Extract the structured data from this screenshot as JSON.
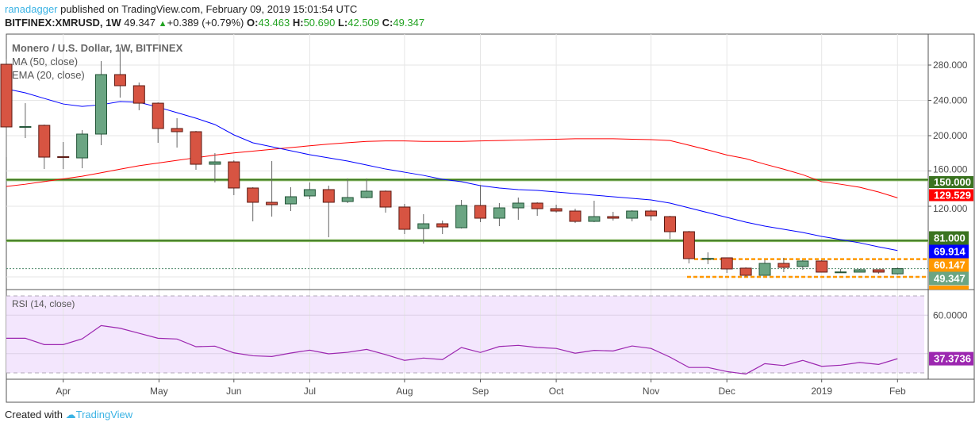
{
  "header": {
    "author": "ranadagger",
    "published": "published on TradingView.com, February 09, 2019 15:01:54 UTC",
    "symbol": "BITFINEX:XMRUSD, 1W",
    "last": "49.347",
    "change": "+0.389 (+0.79%)",
    "o_label": "O:",
    "o": "43.463",
    "h_label": "H:",
    "h": "50.690",
    "l_label": "L:",
    "l": "42.509",
    "c_label": "C:",
    "c": "49.347"
  },
  "footer": {
    "created_with": "Created with",
    "brand": "TradingView"
  },
  "colors": {
    "up": "#6ba583",
    "up_border": "#225437",
    "down": "#d75442",
    "down_border": "#5b1a13",
    "ma50": "#ff0000",
    "ema20": "#0000ff",
    "rsi": "#9c27b0",
    "rsi_bg": "#f3e6fd",
    "support": "#3a7320",
    "range": "#ff9800"
  },
  "chart_data": [
    {
      "type": "candlestick",
      "title": "Monero / U.S. Dollar, 1W, BITFINEX",
      "indicator_labels": [
        "MA (50, close)",
        "EMA (20, close)"
      ],
      "x_tick_labels": [
        "Apr",
        "May",
        "Jun",
        "Jul",
        "Aug",
        "Sep",
        "Oct",
        "Nov",
        "Dec",
        "2019",
        "Feb"
      ],
      "y_tick_labels": [
        "280.000",
        "240.000",
        "200.000",
        "160.000",
        "120.000"
      ],
      "ylim": [
        20,
        300
      ],
      "grid": true,
      "ohlc": [
        [
          280.9,
          287.2,
          175.7,
          209.9
        ],
        [
          209.5,
          236.8,
          197.3,
          210.3
        ],
        [
          211.7,
          212.6,
          162.2,
          175.7
        ],
        [
          176.2,
          192.8,
          162.2,
          175.7
        ],
        [
          174.8,
          206.3,
          163.1,
          201.8
        ],
        [
          201.8,
          284.5,
          189.2,
          269.2
        ],
        [
          269.2,
          299.8,
          243.1,
          256.6
        ],
        [
          256.6,
          260.2,
          228.8,
          236.8
        ],
        [
          236.8,
          237.7,
          191.9,
          208.1
        ],
        [
          208.1,
          219.8,
          186.5,
          204.5
        ],
        [
          204.5,
          205.4,
          161.3,
          167.6
        ],
        [
          167.6,
          180.2,
          147.0,
          170.3
        ],
        [
          170.3,
          172.1,
          132.6,
          140.7
        ],
        [
          140.7,
          141.6,
          102.9,
          124.5
        ],
        [
          124.5,
          171.2,
          108.3,
          121.8
        ],
        [
          122.7,
          141.6,
          114.6,
          130.8
        ],
        [
          131.7,
          147.0,
          128.1,
          138.9
        ],
        [
          138.9,
          143.4,
          84.9,
          124.5
        ],
        [
          125.4,
          151.4,
          123.6,
          129.9
        ],
        [
          129.9,
          151.4,
          129.0,
          137.1
        ],
        [
          137.1,
          138.0,
          112.8,
          119.1
        ],
        [
          119.1,
          122.7,
          88.5,
          93.9
        ],
        [
          94.8,
          111.0,
          77.7,
          100.2
        ],
        [
          100.2,
          103.8,
          88.5,
          96.6
        ],
        [
          95.7,
          127.2,
          94.8,
          120.9
        ],
        [
          120.9,
          144.3,
          102.0,
          106.5
        ],
        [
          106.5,
          123.6,
          97.5,
          118.2
        ],
        [
          118.2,
          129.9,
          104.7,
          123.6
        ],
        [
          123.6,
          124.5,
          109.2,
          117.3
        ],
        [
          117.3,
          121.8,
          112.8,
          114.6
        ],
        [
          114.6,
          117.3,
          101.1,
          102.9
        ],
        [
          102.9,
          126.3,
          102.0,
          108.3
        ],
        [
          108.3,
          113.7,
          103.8,
          106.5
        ],
        [
          106.5,
          115.5,
          102.9,
          114.6
        ],
        [
          114.6,
          116.4,
          103.8,
          109.2
        ],
        [
          108.3,
          109.2,
          83.1,
          91.2
        ],
        [
          91.2,
          92.1,
          55.3,
          60.7
        ],
        [
          60.5,
          67.8,
          54.4,
          60.9
        ],
        [
          61.6,
          61.8,
          44.5,
          49.0
        ],
        [
          49.9,
          50.8,
          40.0,
          41.8
        ],
        [
          41.8,
          58.9,
          41.5,
          55.3
        ],
        [
          55.3,
          61.6,
          45.4,
          50.8
        ],
        [
          51.7,
          58.9,
          48.1,
          58.0
        ],
        [
          58.0,
          58.9,
          45.0,
          45.4
        ],
        [
          45.4,
          49.0,
          44.8,
          45.6
        ],
        [
          45.4,
          49.0,
          44.9,
          48.1
        ],
        [
          48.1,
          48.5,
          43.6,
          45.4
        ],
        [
          43.463,
          50.69,
          42.509,
          49.347
        ]
      ],
      "series": [
        {
          "name": "MA (50, close)",
          "last_label": "129.529",
          "values": [
            142.5,
            145,
            148,
            151,
            154,
            158,
            162,
            166,
            169,
            172,
            175,
            178,
            180.5,
            182.5,
            184.5,
            186.5,
            188.5,
            190.5,
            192,
            193.5,
            194,
            194,
            193.5,
            193.5,
            193.5,
            194,
            194.5,
            195,
            195.5,
            196,
            196.5,
            196.5,
            196.5,
            196,
            195.5,
            194.5,
            189.2,
            183.8,
            178.1,
            173.9,
            167.7,
            162,
            155.8,
            147.8,
            145,
            141.6,
            136.2,
            129.529
          ]
        },
        {
          "name": "EMA (20, close)",
          "last_label": "69.914",
          "values": [
            253,
            248.5,
            242.2,
            235.9,
            233.2,
            235,
            238.6,
            237.7,
            232.3,
            226.1,
            219.8,
            212.6,
            200.9,
            191.9,
            187.4,
            182.9,
            178.4,
            174.8,
            171.2,
            166.7,
            162.2,
            158.6,
            155,
            150.6,
            147.9,
            143.4,
            140.7,
            138.9,
            138,
            136.2,
            134.4,
            132.6,
            130.8,
            129,
            127.2,
            123.6,
            118.2,
            112.8,
            107.4,
            102,
            97.5,
            93.9,
            90.3,
            85.8,
            82.2,
            78.6,
            74,
            69.914
          ]
        }
      ],
      "horizontal_lines": [
        {
          "value": 150,
          "label": "150.000",
          "style": "solid"
        },
        {
          "value": 81,
          "label": "81.000",
          "style": "solid"
        },
        {
          "value": 60.147,
          "label": "60.147",
          "style": "dashed"
        },
        {
          "value": 40,
          "label": "",
          "style": "dashed"
        }
      ],
      "last_price_label": "49.347"
    },
    {
      "type": "line",
      "title": "RSI (14, close)",
      "ylim": [
        25,
        73
      ],
      "bands": [
        30,
        70
      ],
      "y_tick_labels": [
        "60.0000"
      ],
      "last_label": "37.3736",
      "values": [
        48.0,
        48.0,
        44.7,
        44.7,
        47.7,
        54.6,
        53.2,
        50.6,
        48.0,
        47.6,
        43.6,
        43.9,
        40.4,
        38.9,
        38.5,
        40.3,
        41.8,
        39.9,
        40.7,
        42.2,
        39.5,
        36.5,
        37.7,
        36.9,
        43.2,
        40.6,
        43.7,
        44.3,
        43.2,
        42.7,
        40.2,
        41.7,
        41.4,
        44.0,
        42.7,
        38.2,
        32.8,
        32.8,
        30.7,
        29.4,
        34.8,
        33.8,
        36.5,
        33.4,
        34.0,
        35.4,
        34.4,
        37.3736
      ]
    }
  ]
}
